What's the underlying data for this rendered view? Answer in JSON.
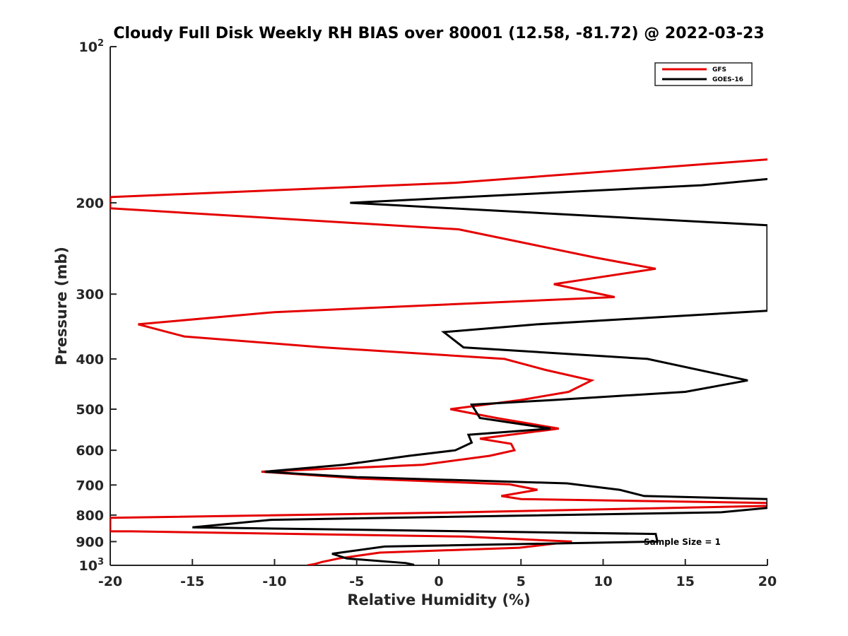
{
  "chart_data": {
    "type": "line",
    "title": "Cloudy Full Disk Weekly RH BIAS over 80001 (12.58, -81.72) @ 2022-03-23",
    "xlabel": "Relative Humidity (%)",
    "ylabel": "Pressure (mb)",
    "xlim": [
      -20,
      20
    ],
    "ylim": [
      100,
      1000
    ],
    "y_scale": "log",
    "y_reversed": true,
    "grid": false,
    "legend_position": "top-right",
    "x_ticks": [
      "-20",
      "-15",
      "-10",
      "-5",
      "0",
      "5",
      "10",
      "15",
      "20"
    ],
    "y_ticks": [
      {
        "value": 100,
        "base": "10",
        "exp": "2"
      },
      {
        "value": 200,
        "label": "200"
      },
      {
        "value": 300,
        "label": "300"
      },
      {
        "value": 400,
        "label": "400"
      },
      {
        "value": 500,
        "label": "500"
      },
      {
        "value": 600,
        "label": "600"
      },
      {
        "value": 700,
        "label": "700"
      },
      {
        "value": 800,
        "label": "800"
      },
      {
        "value": 900,
        "label": "900"
      },
      {
        "value": 1000,
        "base": "10",
        "exp": "3"
      }
    ],
    "annotation": "Sample Size = 1",
    "series": [
      {
        "name": "GFS",
        "color": "#e50000",
        "points": [
          [
            20,
            165
          ],
          [
            1,
            183
          ],
          [
            -20,
            195
          ],
          [
            -20,
            205
          ],
          [
            1.2,
            225
          ],
          [
            9.5,
            255
          ],
          [
            13.2,
            268
          ],
          [
            7,
            287
          ],
          [
            10.7,
            304
          ],
          [
            -10,
            325
          ],
          [
            -18.3,
            343
          ],
          [
            -15.5,
            362
          ],
          [
            -7,
            380
          ],
          [
            4,
            400
          ],
          [
            6.5,
            420
          ],
          [
            9.3,
            440
          ],
          [
            7.9,
            463
          ],
          [
            5,
            480
          ],
          [
            0.7,
            500
          ],
          [
            3.5,
            520
          ],
          [
            7.3,
            545
          ],
          [
            2.5,
            570
          ],
          [
            4.4,
            583
          ],
          [
            4.6,
            600
          ],
          [
            3.1,
            615
          ],
          [
            -1,
            640
          ],
          [
            -10.8,
            660
          ],
          [
            -4.8,
            680
          ],
          [
            4.3,
            698
          ],
          [
            6,
            715
          ],
          [
            3.8,
            735
          ],
          [
            5,
            745
          ],
          [
            20,
            758
          ],
          [
            20,
            768
          ],
          [
            1.5,
            790
          ],
          [
            -20,
            810
          ],
          [
            -20,
            860
          ],
          [
            -18.7,
            860
          ],
          [
            1.5,
            880
          ],
          [
            8.1,
            900
          ],
          [
            4.9,
            925
          ],
          [
            -3.6,
            945
          ],
          [
            -6.1,
            970
          ],
          [
            -7.1,
            985
          ],
          [
            -7.6,
            995
          ],
          [
            -8,
            1000
          ]
        ]
      },
      {
        "name": "GOES-16",
        "color": "#000000",
        "points": [
          [
            20,
            180
          ],
          [
            16,
            185
          ],
          [
            -5.4,
            200
          ],
          [
            20,
            221
          ],
          [
            20,
            323
          ],
          [
            6,
            343
          ],
          [
            0.3,
            355
          ],
          [
            1.5,
            380
          ],
          [
            12.7,
            400
          ],
          [
            18.8,
            440
          ],
          [
            15,
            463
          ],
          [
            7,
            480
          ],
          [
            2,
            490
          ],
          [
            2.5,
            520
          ],
          [
            6.8,
            545
          ],
          [
            1.8,
            560
          ],
          [
            2,
            580
          ],
          [
            1,
            600
          ],
          [
            -1.8,
            615
          ],
          [
            -5.8,
            640
          ],
          [
            -10.6,
            660
          ],
          [
            -5,
            676
          ],
          [
            7.8,
            695
          ],
          [
            11,
            715
          ],
          [
            12.5,
            735
          ],
          [
            20,
            745
          ],
          [
            20,
            775
          ],
          [
            17.2,
            790
          ],
          [
            -10.2,
            817
          ],
          [
            -15,
            845
          ],
          [
            13.2,
            870
          ],
          [
            13.3,
            900
          ],
          [
            -3.3,
            920
          ],
          [
            -6.5,
            950
          ],
          [
            -5.6,
            970
          ],
          [
            -2,
            990
          ],
          [
            -1.5,
            998
          ]
        ]
      }
    ]
  }
}
